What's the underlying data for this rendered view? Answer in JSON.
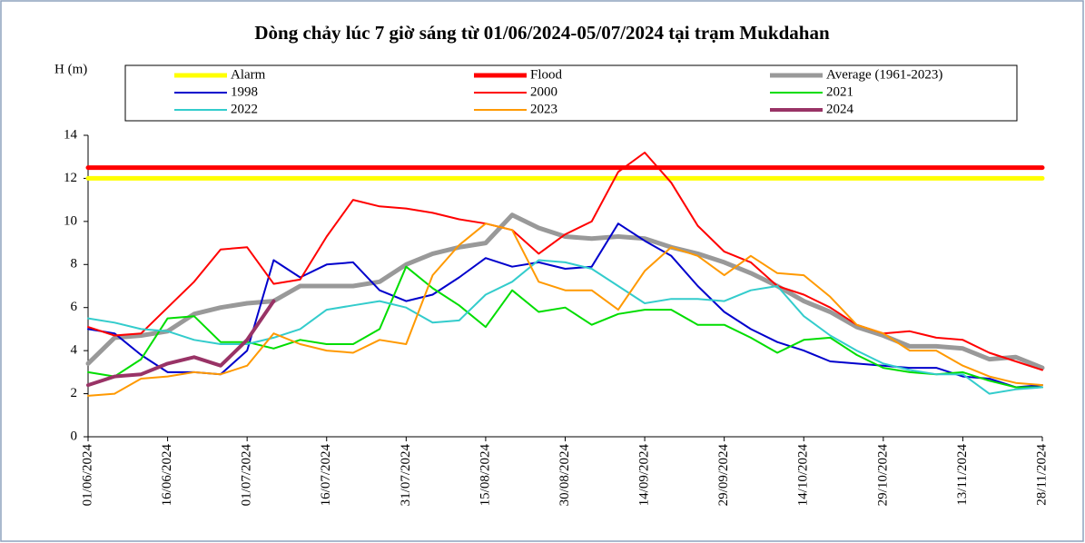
{
  "chart_data": {
    "type": "line",
    "title": "Dòng chảy lúc 7 giờ sáng từ 01/06/2024-05/07/2024 tại trạm Mukdahan",
    "y_label": "H (m)",
    "x": [
      0,
      5,
      10,
      15,
      20,
      25,
      30,
      35,
      40,
      45,
      50,
      55,
      60,
      65,
      70,
      75,
      80,
      85,
      90,
      95,
      100,
      105,
      110,
      115,
      120,
      125,
      130,
      135,
      140,
      145,
      150,
      155,
      160,
      165,
      170,
      175,
      180
    ],
    "xlim": [
      0,
      180
    ],
    "xticks": [
      {
        "value": 0,
        "label": "01/06/2024"
      },
      {
        "value": 15,
        "label": "16/06/2024"
      },
      {
        "value": 30,
        "label": "01/07/2024"
      },
      {
        "value": 45,
        "label": "16/07/2024"
      },
      {
        "value": 60,
        "label": "31/07/2024"
      },
      {
        "value": 75,
        "label": "15/08/2024"
      },
      {
        "value": 90,
        "label": "30/08/2024"
      },
      {
        "value": 105,
        "label": "14/09/2024"
      },
      {
        "value": 120,
        "label": "29/09/2024"
      },
      {
        "value": 135,
        "label": "14/10/2024"
      },
      {
        "value": 150,
        "label": "29/10/2024"
      },
      {
        "value": 165,
        "label": "13/11/2024"
      },
      {
        "value": 180,
        "label": "28/11/2024"
      }
    ],
    "ylim": [
      0,
      14
    ],
    "yticks": [
      0,
      2,
      4,
      6,
      8,
      10,
      12,
      14
    ],
    "series": [
      {
        "name": "Alarm",
        "color": "#ffff00",
        "width": 5,
        "values": [
          12,
          12,
          12,
          12,
          12,
          12,
          12,
          12,
          12,
          12,
          12,
          12,
          12,
          12,
          12,
          12,
          12,
          12,
          12,
          12,
          12,
          12,
          12,
          12,
          12,
          12,
          12,
          12,
          12,
          12,
          12,
          12,
          12,
          12,
          12,
          12,
          12
        ]
      },
      {
        "name": "Flood",
        "color": "#ff0000",
        "width": 5,
        "values": [
          12.5,
          12.5,
          12.5,
          12.5,
          12.5,
          12.5,
          12.5,
          12.5,
          12.5,
          12.5,
          12.5,
          12.5,
          12.5,
          12.5,
          12.5,
          12.5,
          12.5,
          12.5,
          12.5,
          12.5,
          12.5,
          12.5,
          12.5,
          12.5,
          12.5,
          12.5,
          12.5,
          12.5,
          12.5,
          12.5,
          12.5,
          12.5,
          12.5,
          12.5,
          12.5,
          12.5,
          12.5
        ]
      },
      {
        "name": "Average (1961-2023)",
        "color": "#999999",
        "width": 5,
        "values": [
          3.4,
          4.6,
          4.7,
          4.9,
          5.7,
          6.0,
          6.2,
          6.3,
          7.0,
          7.0,
          7.0,
          7.2,
          8.0,
          8.5,
          8.8,
          9.0,
          10.3,
          9.7,
          9.3,
          9.2,
          9.3,
          9.2,
          8.8,
          8.5,
          8.1,
          7.6,
          7.0,
          6.3,
          5.8,
          5.1,
          4.7,
          4.2,
          4.2,
          4.1,
          3.6,
          3.7,
          3.2
        ]
      },
      {
        "name": "1998",
        "color": "#0000cc",
        "width": 2,
        "values": [
          5.0,
          4.8,
          3.8,
          3.0,
          3.0,
          2.9,
          4.0,
          8.2,
          7.4,
          8.0,
          8.1,
          6.8,
          6.3,
          6.6,
          7.4,
          8.3,
          7.9,
          8.1,
          7.8,
          7.9,
          9.9,
          9.1,
          8.4,
          7.0,
          5.8,
          5.0,
          4.4,
          4.0,
          3.5,
          3.4,
          3.3,
          3.2,
          3.2,
          2.8,
          2.7,
          2.3,
          2.4
        ]
      },
      {
        "name": "2000",
        "color": "#ff0000",
        "width": 2,
        "values": [
          5.1,
          4.7,
          4.8,
          6.0,
          7.2,
          8.7,
          8.8,
          7.1,
          7.3,
          9.3,
          11.0,
          10.7,
          10.6,
          10.4,
          10.1,
          9.9,
          9.6,
          8.5,
          9.4,
          10.0,
          12.3,
          13.2,
          11.8,
          9.8,
          8.6,
          8.1,
          7.0,
          6.6,
          6.0,
          5.2,
          4.8,
          4.9,
          4.6,
          4.5,
          3.9,
          3.5,
          3.1
        ]
      },
      {
        "name": "2021",
        "color": "#00dd00",
        "width": 2,
        "values": [
          3.0,
          2.8,
          3.6,
          5.5,
          5.6,
          4.4,
          4.4,
          4.1,
          4.5,
          4.3,
          4.3,
          5.0,
          7.9,
          6.9,
          6.1,
          5.1,
          6.8,
          5.8,
          6.0,
          5.2,
          5.7,
          5.9,
          5.9,
          5.2,
          5.2,
          4.6,
          3.9,
          4.5,
          4.6,
          3.8,
          3.2,
          3.0,
          2.9,
          3.0,
          2.6,
          2.3,
          2.3
        ]
      },
      {
        "name": "2022",
        "color": "#33cccc",
        "width": 2,
        "values": [
          5.5,
          5.3,
          5.0,
          4.9,
          4.5,
          4.3,
          4.3,
          4.6,
          5.0,
          5.9,
          6.1,
          6.3,
          6.0,
          5.3,
          5.4,
          6.6,
          7.2,
          8.2,
          8.1,
          7.8,
          7.0,
          6.2,
          6.4,
          6.4,
          6.3,
          6.8,
          7.0,
          5.6,
          4.7,
          4.0,
          3.4,
          3.1,
          2.9,
          2.9,
          2.0,
          2.2,
          2.3
        ]
      },
      {
        "name": "2023",
        "color": "#ff9900",
        "width": 2,
        "values": [
          1.9,
          2.0,
          2.7,
          2.8,
          3.0,
          2.9,
          3.3,
          4.8,
          4.3,
          4.0,
          3.9,
          4.5,
          4.3,
          7.5,
          8.9,
          9.9,
          9.6,
          7.2,
          6.8,
          6.8,
          5.9,
          7.7,
          8.8,
          8.4,
          7.5,
          8.4,
          7.6,
          7.5,
          6.5,
          5.2,
          4.8,
          4.0,
          4.0,
          3.3,
          2.8,
          2.5,
          2.4
        ]
      },
      {
        "name": "2024",
        "color": "#993366",
        "width": 4,
        "values": [
          2.4,
          2.8,
          2.9,
          3.4,
          3.7,
          3.3,
          4.5,
          6.3,
          null,
          null,
          null,
          null,
          null,
          null,
          null,
          null,
          null,
          null,
          null,
          null,
          null,
          null,
          null,
          null,
          null,
          null,
          null,
          null,
          null,
          null,
          null,
          null,
          null,
          null,
          null,
          null,
          null
        ]
      }
    ]
  }
}
